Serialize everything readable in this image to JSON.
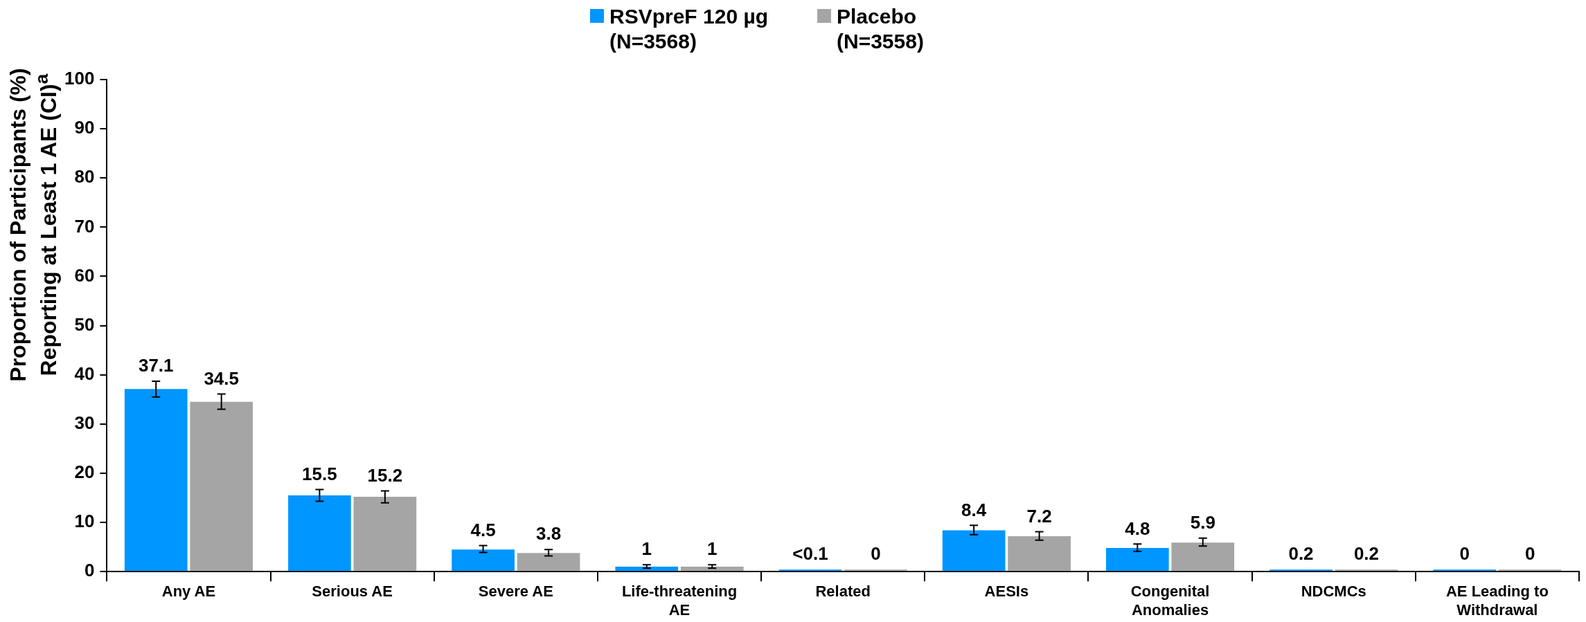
{
  "chart_data": {
    "type": "bar",
    "ylabel": "Proportion of Participants (%) Reporting at Least 1 AE (CI)$^{a}$",
    "categories": [
      "Any AE",
      "Serious AE",
      "Severe AE",
      "Life-threatening AE",
      "Related",
      "AESIs",
      "Congenital Anomalies",
      "NDCMCs",
      "AE Leading to Withdrawal"
    ],
    "series": [
      {
        "name": "RSVpreF 120 µg (N=3568)",
        "color": "#0096ff",
        "values": [
          37.1,
          15.5,
          4.5,
          1,
          0.05,
          8.4,
          4.8,
          0.2,
          0
        ],
        "value_labels": [
          "37.1",
          "15.5",
          "4.5",
          "1",
          "<0.1",
          "8.4",
          "4.8",
          "0.2",
          "0"
        ],
        "errors": [
          [
            35.5,
            38.7
          ],
          [
            14.3,
            16.7
          ],
          [
            3.9,
            5.3
          ],
          [
            0.7,
            1.4
          ],
          null,
          [
            7.5,
            9.4
          ],
          [
            4.1,
            5.6
          ],
          null,
          null
        ]
      },
      {
        "name": "Placebo (N=3558)",
        "color": "#a5a5a5",
        "values": [
          34.5,
          15.2,
          3.8,
          1,
          0,
          7.2,
          5.9,
          0.2,
          0
        ],
        "value_labels": [
          "34.5",
          "15.2",
          "3.8",
          "1",
          "0",
          "7.2",
          "5.9",
          "0.2",
          "0"
        ],
        "errors": [
          [
            33.0,
            36.1
          ],
          [
            14.0,
            16.4
          ],
          [
            3.2,
            4.5
          ],
          [
            0.7,
            1.4
          ],
          null,
          [
            6.4,
            8.1
          ],
          [
            5.2,
            6.8
          ],
          null,
          null
        ]
      }
    ],
    "ylim": [
      0,
      100
    ],
    "yticks": [
      0,
      10,
      20,
      30,
      40,
      50,
      60,
      70,
      80,
      90,
      100
    ],
    "grid": false,
    "legend": "top"
  }
}
